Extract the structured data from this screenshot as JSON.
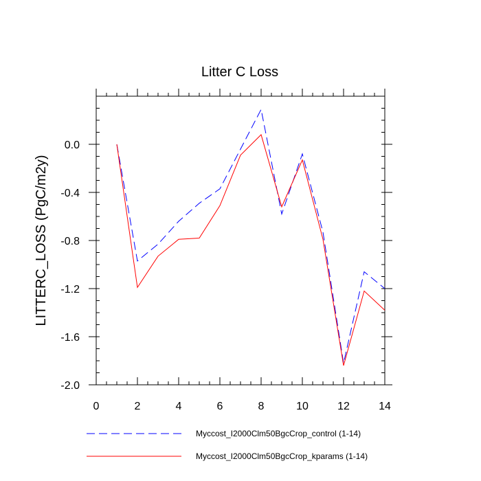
{
  "chart_data": {
    "type": "line",
    "title": "Litter C Loss",
    "xlabel": "",
    "ylabel": "LITTERC_LOSS  (PgC/m2y)",
    "xlim": [
      0,
      14
    ],
    "ylim": [
      -2.0,
      0.4
    ],
    "x_ticks": [
      0,
      2,
      4,
      6,
      8,
      10,
      12,
      14
    ],
    "x_tick_labels": [
      "0",
      "2",
      "4",
      "6",
      "8",
      "10",
      "12",
      "14"
    ],
    "y_ticks": [
      -2.0,
      -1.6,
      -1.2,
      -0.8,
      -0.4,
      0.0
    ],
    "y_tick_labels": [
      "-2.0",
      "-1.6",
      "-1.2",
      "-0.8",
      "-0.4",
      "0.0"
    ],
    "grid": false,
    "legend_position": "bottom",
    "x": [
      1,
      2,
      3,
      4,
      5,
      6,
      7,
      8,
      9,
      10,
      11,
      12,
      13,
      14
    ],
    "series": [
      {
        "name": "Myccost_I2000Clm50BgcCrop_control (1-14)",
        "color": "#0000ff",
        "style": "dashed",
        "values": [
          0.0,
          -0.97,
          -0.83,
          -0.64,
          -0.49,
          -0.37,
          -0.04,
          0.29,
          -0.58,
          -0.08,
          -0.73,
          -1.82,
          -1.06,
          -1.2
        ]
      },
      {
        "name": "Myccost_I2000Clm50BgcCrop_kparams (1-14)",
        "color": "#ff0000",
        "style": "solid",
        "values": [
          0.0,
          -1.19,
          -0.93,
          -0.79,
          -0.78,
          -0.51,
          -0.09,
          0.08,
          -0.52,
          -0.13,
          -0.79,
          -1.84,
          -1.22,
          -1.38
        ]
      }
    ]
  }
}
